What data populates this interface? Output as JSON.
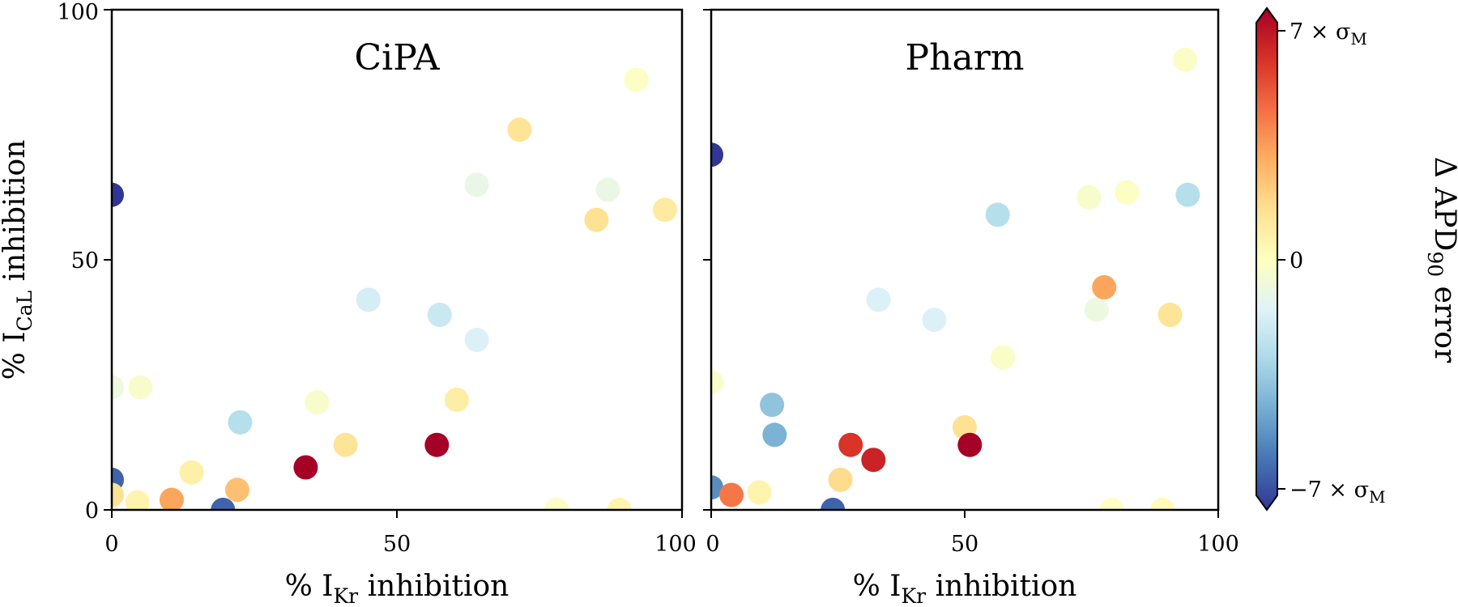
{
  "chart_data": [
    {
      "type": "scatter",
      "title": "CiPA",
      "ylabel": {
        "prefix": "% I",
        "sub": "CaL",
        "suffix": " inhibition"
      },
      "xlabel": {
        "prefix": "% I",
        "sub": "Kr",
        "suffix": " inhibition"
      },
      "xlim": [
        0,
        100
      ],
      "ylim": [
        0,
        100
      ],
      "xticks": [
        "0",
        "50",
        "100"
      ],
      "yticks": [
        "0",
        "50",
        "100"
      ],
      "points": [
        {
          "x": 0,
          "y": 63,
          "c": -7
        },
        {
          "x": 0,
          "y": 24.5,
          "c": -0.8
        },
        {
          "x": 5,
          "y": 24.5,
          "c": -0.3
        },
        {
          "x": 0,
          "y": 6,
          "c": -6
        },
        {
          "x": 0,
          "y": 3,
          "c": 1.3
        },
        {
          "x": 4.5,
          "y": 1.5,
          "c": 0.5
        },
        {
          "x": 10.5,
          "y": 2,
          "c": 3
        },
        {
          "x": 14,
          "y": 7.5,
          "c": 0.7
        },
        {
          "x": 19.5,
          "y": 0,
          "c": -6
        },
        {
          "x": 22,
          "y": 4,
          "c": 2.3
        },
        {
          "x": 22.5,
          "y": 17.5,
          "c": -2.5
        },
        {
          "x": 34,
          "y": 8.5,
          "c": 7
        },
        {
          "x": 36,
          "y": 21.5,
          "c": -0.3
        },
        {
          "x": 41,
          "y": 13,
          "c": 1.2
        },
        {
          "x": 45,
          "y": 42,
          "c": -1.7
        },
        {
          "x": 57,
          "y": 13,
          "c": 7
        },
        {
          "x": 57.5,
          "y": 39,
          "c": -2
        },
        {
          "x": 60.5,
          "y": 22,
          "c": 0.8
        },
        {
          "x": 64,
          "y": 34,
          "c": -1.5
        },
        {
          "x": 64,
          "y": 65,
          "c": -1
        },
        {
          "x": 71.5,
          "y": 76,
          "c": 1.2
        },
        {
          "x": 78,
          "y": 0,
          "c": -0.2
        },
        {
          "x": 85,
          "y": 58,
          "c": 1.3
        },
        {
          "x": 87,
          "y": 64,
          "c": -0.9
        },
        {
          "x": 89,
          "y": 0,
          "c": 0.5
        },
        {
          "x": 92,
          "y": 86,
          "c": -0.1
        },
        {
          "x": 97,
          "y": 60,
          "c": 0.9
        }
      ]
    },
    {
      "type": "scatter",
      "title": "Pharm",
      "xlabel": {
        "prefix": "% I",
        "sub": "Kr",
        "suffix": " inhibition"
      },
      "xlim": [
        0,
        100
      ],
      "ylim": [
        0,
        100
      ],
      "xticks": [
        "0",
        "50",
        "100"
      ],
      "points": [
        {
          "x": 0,
          "y": 71,
          "c": -7
        },
        {
          "x": 0,
          "y": 25.5,
          "c": -0.3
        },
        {
          "x": 0,
          "y": 4.5,
          "c": -5
        },
        {
          "x": 4,
          "y": 3,
          "c": 4
        },
        {
          "x": 9.5,
          "y": 3.5,
          "c": 0.5
        },
        {
          "x": 12,
          "y": 21,
          "c": -3.5
        },
        {
          "x": 12.5,
          "y": 15,
          "c": -4
        },
        {
          "x": 24,
          "y": 0,
          "c": -6
        },
        {
          "x": 25.5,
          "y": 6,
          "c": 1.5
        },
        {
          "x": 27.5,
          "y": 13,
          "c": 5.5
        },
        {
          "x": 32,
          "y": 10,
          "c": 6
        },
        {
          "x": 33,
          "y": 42,
          "c": -1.5
        },
        {
          "x": 44,
          "y": 38,
          "c": -1.5
        },
        {
          "x": 50,
          "y": 16.5,
          "c": 1.3
        },
        {
          "x": 51,
          "y": 13,
          "c": 7
        },
        {
          "x": 56.5,
          "y": 59,
          "c": -2.5
        },
        {
          "x": 57.5,
          "y": 30.5,
          "c": -0.2
        },
        {
          "x": 74.5,
          "y": 62.5,
          "c": -0.3
        },
        {
          "x": 76,
          "y": 40,
          "c": -0.8
        },
        {
          "x": 77.5,
          "y": 44.5,
          "c": 3
        },
        {
          "x": 79,
          "y": 0,
          "c": -0.1
        },
        {
          "x": 82,
          "y": 63.5,
          "c": -0.1
        },
        {
          "x": 89,
          "y": 0,
          "c": 0.2
        },
        {
          "x": 90.5,
          "y": 39,
          "c": 1.2
        },
        {
          "x": 93.5,
          "y": 90,
          "c": -0.2
        },
        {
          "x": 94,
          "y": 63,
          "c": -2.5
        }
      ]
    }
  ],
  "colorbar": {
    "label": {
      "prefix": "Δ APD",
      "sub": "90",
      "suffix": " error"
    },
    "range": [
      -7,
      7
    ],
    "ticks": [
      {
        "value": 7,
        "prefix": "7 × σ",
        "sub": "M"
      },
      {
        "value": 0,
        "prefix": "0",
        "sub": ""
      },
      {
        "value": -7,
        "prefix": "−7 × σ",
        "sub": "M"
      }
    ],
    "colormap": [
      "#313695",
      "#4575b4",
      "#74add1",
      "#abd9e9",
      "#e0f3f8",
      "#ffffbf",
      "#fee090",
      "#fdae61",
      "#f46d43",
      "#d73027",
      "#a50026"
    ]
  }
}
